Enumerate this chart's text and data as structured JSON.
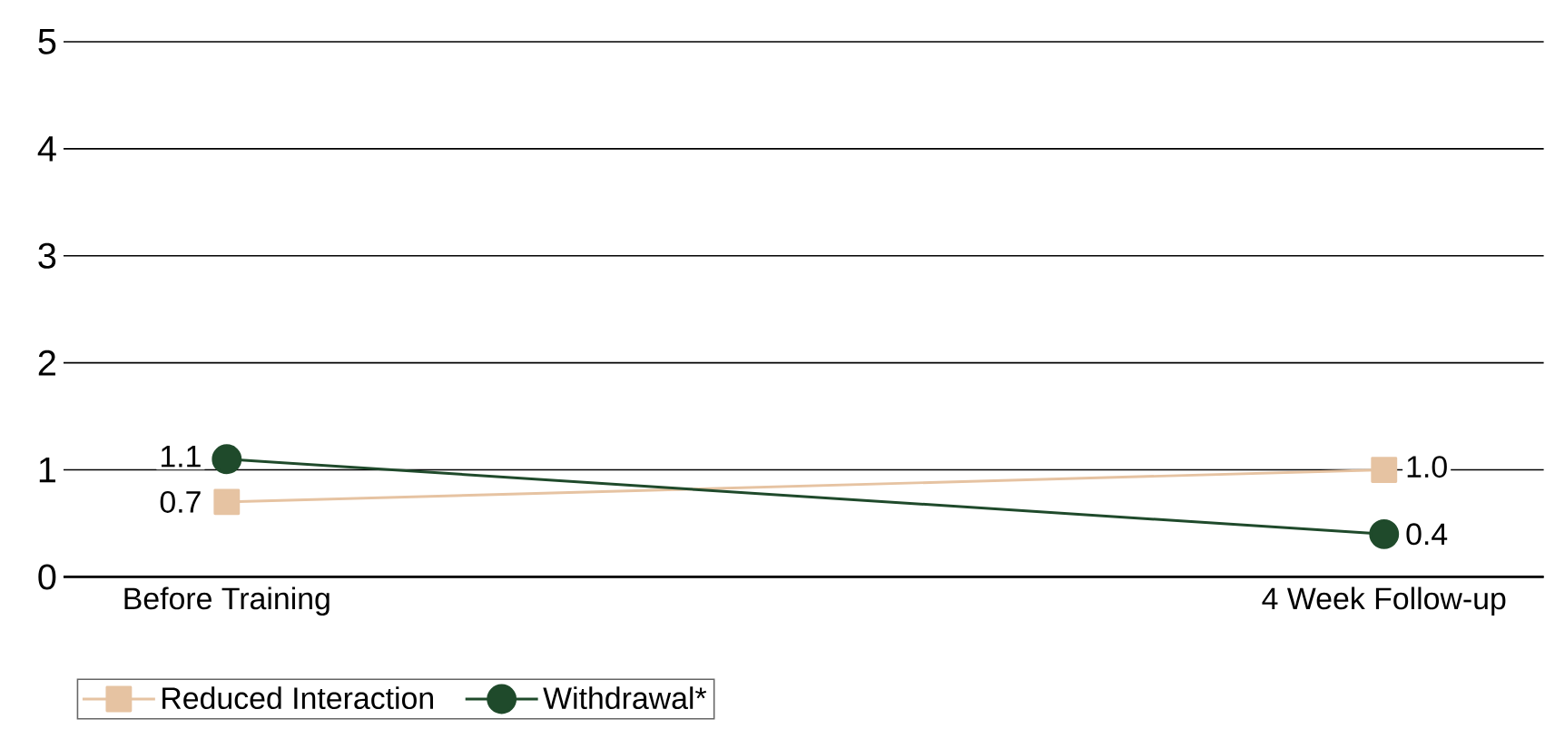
{
  "chart_data": {
    "type": "line",
    "categories": [
      "Before Training",
      "4 Week Follow-up"
    ],
    "series": [
      {
        "name": "Reduced Interaction",
        "color": "#e6c3a2",
        "values": [
          0.7,
          1.0
        ],
        "value_labels": [
          "0.7",
          "1.0"
        ],
        "marker": "square"
      },
      {
        "name": "Withdrawal*",
        "color": "#1f4a2b",
        "values": [
          1.1,
          0.4
        ],
        "value_labels": [
          "1.1",
          "0.4"
        ],
        "marker": "circle"
      }
    ],
    "ylim": [
      0,
      5
    ],
    "yticks": [
      0,
      1,
      2,
      3,
      4,
      5
    ],
    "grid": "y",
    "legend": "bottom left",
    "line_style": "solid"
  }
}
